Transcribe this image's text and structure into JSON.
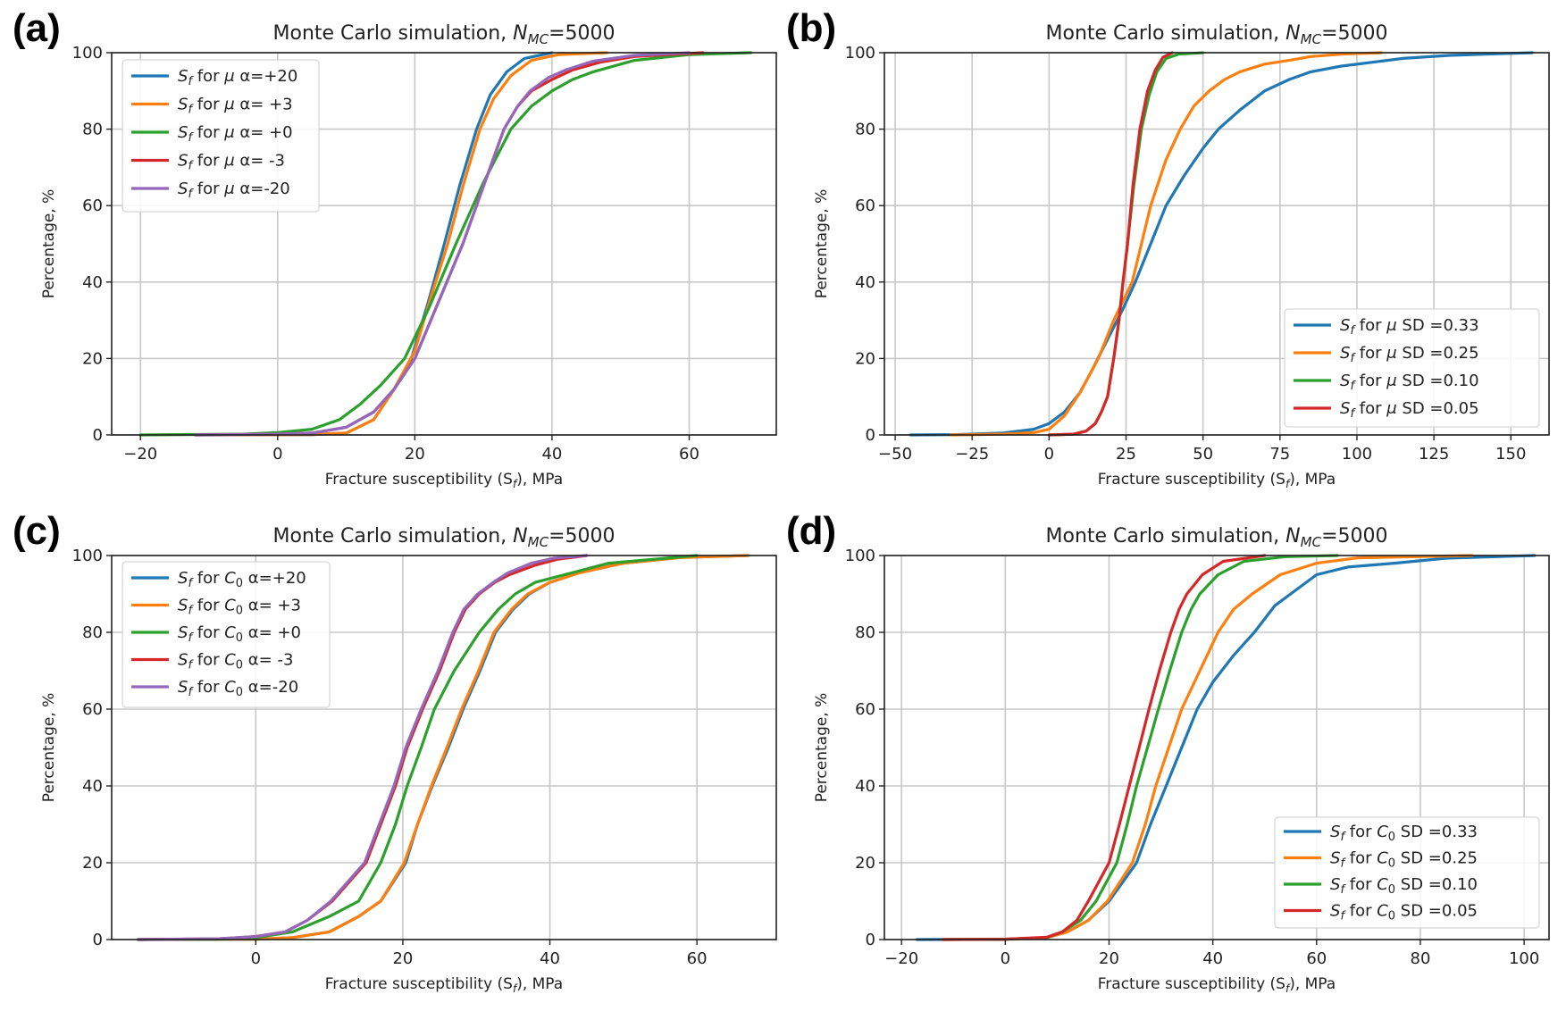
{
  "figure": {
    "panels": [
      "(a)",
      "(b)",
      "(c)",
      "(d)"
    ]
  },
  "chart_data": [
    {
      "panel": "(a)",
      "type": "line",
      "title": "Monte Carlo simulation, N_MC=5000",
      "title_parts": {
        "prefix": "Monte Carlo simulation, ",
        "symbol": "N",
        "subscript": "MC",
        "suffix": "=5000"
      },
      "xlabel": "Fracture susceptibility (S_f), MPa",
      "ylabel": "Percentage, %",
      "xlim": [
        -24.2,
        72.7
      ],
      "ylim": [
        0,
        100
      ],
      "xticks": [
        -20,
        0,
        20,
        40,
        60
      ],
      "xtick_labels": [
        "−20",
        "0",
        "20",
        "40",
        "60"
      ],
      "yticks": [
        0,
        20,
        40,
        60,
        80,
        100
      ],
      "ytick_labels": [
        "0",
        "20",
        "40",
        "60",
        "80",
        "100"
      ],
      "grid": true,
      "legend_position": "upper-left",
      "series": [
        {
          "name": "S_f for μ α=+20",
          "legend": {
            "param": "μ",
            "value": "α=+20"
          },
          "color": "#1f77b4",
          "x": [
            -12,
            5,
            10,
            14,
            17,
            19.5,
            22,
            24.3,
            26.5,
            29,
            31,
            33.4,
            36,
            40
          ],
          "y": [
            0,
            0.1,
            0.5,
            4,
            12,
            20,
            35,
            50,
            65,
            80,
            89,
            95,
            98.5,
            100
          ]
        },
        {
          "name": "S_f for μ α= +3",
          "legend": {
            "param": "μ",
            "value": "α= +3"
          },
          "color": "#ff7f0e",
          "x": [
            -12,
            5,
            10,
            14,
            17,
            20,
            22.5,
            24.8,
            27,
            29.5,
            31.5,
            34,
            37,
            41,
            48
          ],
          "y": [
            0,
            0.1,
            0.5,
            4,
            12,
            22,
            37,
            50,
            65,
            80,
            88,
            94,
            98,
            99.5,
            100
          ]
        },
        {
          "name": "S_f for μ α= +0",
          "legend": {
            "param": "μ",
            "value": "α= +0"
          },
          "color": "#2ca02c",
          "x": [
            -20,
            -5,
            0,
            5,
            9,
            12,
            15,
            18.5,
            22,
            26,
            30,
            34,
            37,
            40,
            43,
            46,
            52,
            60,
            69
          ],
          "y": [
            0,
            0.2,
            0.6,
            1.5,
            4,
            8,
            13,
            20,
            33,
            50,
            66,
            80,
            86,
            90,
            93,
            95,
            98,
            99.5,
            100
          ]
        },
        {
          "name": "S_f for μ α= -3",
          "legend": {
            "param": "μ",
            "value": "α= -3"
          },
          "color": "#d62728",
          "x": [
            -12,
            0,
            5,
            10,
            14,
            17,
            20,
            23.5,
            27,
            30,
            33,
            35,
            37,
            40,
            43,
            47,
            52,
            62
          ],
          "y": [
            0,
            0.2,
            0.5,
            2,
            6,
            12,
            20,
            35,
            50,
            65,
            80,
            86,
            90,
            93,
            95.5,
            97.5,
            99,
            100
          ]
        },
        {
          "name": "S_f for μ α=-20",
          "legend": {
            "param": "μ",
            "value": "α=-20"
          },
          "color": "#9467bd",
          "x": [
            -12,
            0,
            5,
            10,
            14,
            17,
            20,
            23.5,
            27,
            30,
            33,
            35,
            36.8,
            39.5,
            42,
            46,
            52,
            60
          ],
          "y": [
            0,
            0.2,
            0.5,
            2,
            6,
            12,
            20,
            35,
            50,
            65,
            80,
            86,
            90,
            93.5,
            95.5,
            97.8,
            99.3,
            100
          ]
        }
      ]
    },
    {
      "panel": "(b)",
      "type": "line",
      "title": "Monte Carlo simulation, N_MC=5000",
      "title_parts": {
        "prefix": "Monte Carlo simulation, ",
        "symbol": "N",
        "subscript": "MC",
        "suffix": "=5000"
      },
      "xlabel": "Fracture susceptibility (S_f), MPa",
      "ylabel": "Percentage, %",
      "xlim": [
        -53.5,
        162.4
      ],
      "ylim": [
        0,
        100
      ],
      "xticks": [
        -50,
        -25,
        0,
        25,
        50,
        75,
        100,
        125,
        150
      ],
      "xtick_labels": [
        "−50",
        "−25",
        "0",
        "25",
        "50",
        "75",
        "100",
        "125",
        "150"
      ],
      "yticks": [
        0,
        20,
        40,
        60,
        80,
        100
      ],
      "ytick_labels": [
        "0",
        "20",
        "40",
        "60",
        "80",
        "100"
      ],
      "grid": true,
      "legend_position": "lower-right",
      "series": [
        {
          "name": "S_f for μ SD =0.33",
          "legend": {
            "param": "μ",
            "value": "SD =0.33"
          },
          "color": "#1f77b4",
          "x": [
            -45,
            -30,
            -15,
            -5,
            0,
            5,
            10,
            14,
            19,
            24,
            28,
            33,
            38,
            44,
            50,
            55,
            62,
            70,
            78,
            85,
            95,
            105,
            115,
            130,
            157
          ],
          "y": [
            0,
            0.1,
            0.5,
            1.5,
            3,
            6,
            11,
            17,
            25,
            33,
            40,
            50,
            60,
            68,
            75,
            80,
            85,
            90,
            93,
            95,
            96.5,
            97.5,
            98.5,
            99.3,
            100
          ]
        },
        {
          "name": "S_f for μ SD =0.25",
          "legend": {
            "param": "μ",
            "value": "SD =0.25"
          },
          "color": "#ff7f0e",
          "x": [
            -32,
            -15,
            -5,
            0,
            5,
            10,
            16,
            21,
            27,
            33,
            38,
            42.6,
            47,
            52,
            57,
            62,
            70,
            78,
            85,
            95,
            108
          ],
          "y": [
            0,
            0.2,
            0.6,
            1.5,
            5,
            11,
            20,
            30,
            40,
            60,
            72,
            80,
            86,
            90,
            93,
            95,
            97,
            98,
            99,
            99.6,
            100
          ]
        },
        {
          "name": "S_f for μ SD =0.10",
          "legend": {
            "param": "μ",
            "value": "SD =0.10"
          },
          "color": "#2ca02c",
          "x": [
            0,
            8,
            12,
            15,
            17,
            19,
            21,
            22.7,
            24,
            25.5,
            27.5,
            30,
            32.5,
            35,
            38,
            42,
            50
          ],
          "y": [
            0,
            0.2,
            1,
            3,
            6,
            10,
            20,
            30,
            40,
            50,
            65,
            80,
            89,
            95,
            98.5,
            99.6,
            100
          ]
        },
        {
          "name": "S_f for μ SD =0.05",
          "legend": {
            "param": "μ",
            "value": "SD =0.05"
          },
          "color": "#d62728",
          "x": [
            0,
            8,
            12,
            15,
            17,
            19,
            21,
            22.7,
            24,
            25.5,
            27.2,
            29.5,
            32,
            34.5,
            37,
            40
          ],
          "y": [
            0,
            0.2,
            1,
            3,
            6,
            10,
            20,
            30,
            40,
            50,
            65,
            80,
            90,
            95.5,
            98.8,
            100
          ]
        }
      ]
    },
    {
      "panel": "(c)",
      "type": "line",
      "title": "Monte Carlo simulation, N_MC=5000",
      "title_parts": {
        "prefix": "Monte Carlo simulation, ",
        "symbol": "N",
        "subscript": "MC",
        "suffix": "=5000"
      },
      "xlabel": "Fracture susceptibility (S_f), MPa",
      "ylabel": "Percentage, %",
      "xlim": [
        -19.6,
        70.8
      ],
      "ylim": [
        0,
        100
      ],
      "xticks": [
        0,
        20,
        40,
        60
      ],
      "xtick_labels": [
        "0",
        "20",
        "40",
        "60"
      ],
      "yticks": [
        0,
        20,
        40,
        60,
        80,
        100
      ],
      "ytick_labels": [
        "0",
        "20",
        "40",
        "60",
        "80",
        "100"
      ],
      "grid": true,
      "legend_position": "upper-left",
      "series": [
        {
          "name": "S_f for C0 α=+20",
          "legend": {
            "param": "C",
            "param_sub": "0",
            "value": "α=+20"
          },
          "color": "#1f77b4",
          "x": [
            -16,
            0,
            5,
            10,
            14,
            17,
            20.4,
            22,
            24,
            26.2,
            28.2,
            30.5,
            32.6,
            35,
            37.2,
            40,
            44,
            50,
            58,
            67
          ],
          "y": [
            0,
            0.1,
            0.5,
            2,
            6,
            10,
            20,
            30,
            40,
            50,
            60,
            70,
            80,
            86,
            90,
            93,
            95.5,
            98,
            99.5,
            100
          ]
        },
        {
          "name": "S_f for C0 α= +3",
          "legend": {
            "param": "C",
            "param_sub": "0",
            "value": "α= +3"
          },
          "color": "#ff7f0e",
          "x": [
            -16,
            0,
            5,
            10,
            14,
            17,
            20.2,
            22,
            23.9,
            26,
            28,
            30.3,
            32.4,
            34.8,
            37,
            40,
            44,
            50,
            58,
            67
          ],
          "y": [
            0,
            0.1,
            0.5,
            2,
            6,
            10,
            20,
            30,
            40,
            50,
            60,
            70,
            80,
            86,
            90,
            93,
            95.5,
            98,
            99.5,
            100
          ]
        },
        {
          "name": "S_f for C0 α= +0",
          "legend": {
            "param": "C",
            "param_sub": "0",
            "value": "α= +0"
          },
          "color": "#2ca02c",
          "x": [
            -16,
            -5,
            0,
            5,
            10,
            14,
            17,
            19,
            20.6,
            22.5,
            24.3,
            27,
            30.4,
            33,
            35.3,
            38,
            42,
            48,
            60
          ],
          "y": [
            0,
            0.1,
            0.5,
            2,
            6,
            10,
            20,
            30,
            40,
            50,
            60,
            70,
            80,
            86,
            90,
            93,
            95,
            98,
            100
          ]
        },
        {
          "name": "S_f for C0 α= -3",
          "legend": {
            "param": "C",
            "param_sub": "0",
            "value": "α= -3"
          },
          "color": "#d62728",
          "x": [
            -16,
            -5,
            0,
            4,
            7,
            10.4,
            15,
            17,
            19,
            20.6,
            22.7,
            25,
            27,
            28.5,
            30.4,
            32.5,
            34.5,
            38,
            41,
            45
          ],
          "y": [
            0,
            0.2,
            0.8,
            2,
            5,
            10,
            20,
            30,
            40,
            50,
            60,
            70,
            80,
            86,
            90,
            93,
            95,
            97.5,
            99,
            100
          ]
        },
        {
          "name": "S_f for C0 α=-20",
          "legend": {
            "param": "C",
            "param_sub": "0",
            "value": "α=-20"
          },
          "color": "#9467bd",
          "x": [
            -16,
            -5,
            0,
            4,
            7,
            10.2,
            14.8,
            16.8,
            18.8,
            20.4,
            22.5,
            24.8,
            26.8,
            28.3,
            30.2,
            32.3,
            34.3,
            37.5,
            40.5,
            45
          ],
          "y": [
            0,
            0.2,
            0.8,
            2,
            5,
            10,
            20,
            30,
            40,
            50,
            60,
            70,
            80,
            86,
            90,
            93,
            95.5,
            98,
            99.3,
            100
          ]
        }
      ]
    },
    {
      "panel": "(d)",
      "type": "line",
      "title": "Monte Carlo simulation, N_MC=5000",
      "title_parts": {
        "prefix": "Monte Carlo simulation, ",
        "symbol": "N",
        "subscript": "MC",
        "suffix": "=5000"
      },
      "xlabel": "Fracture susceptibility (S_f), MPa",
      "ylabel": "Percentage, %",
      "xlim": [
        -23.3,
        104.8
      ],
      "ylim": [
        0,
        100
      ],
      "xticks": [
        -20,
        0,
        20,
        40,
        60,
        80,
        100
      ],
      "xtick_labels": [
        "−20",
        "0",
        "20",
        "40",
        "60",
        "80",
        "100"
      ],
      "yticks": [
        0,
        20,
        40,
        60,
        80,
        100
      ],
      "ytick_labels": [
        "0",
        "20",
        "40",
        "60",
        "80",
        "100"
      ],
      "grid": true,
      "legend_position": "lower-right",
      "series": [
        {
          "name": "S_f for C0 SD =0.33",
          "legend": {
            "param": "C",
            "param_sub": "0",
            "value": "SD =0.33"
          },
          "color": "#1f77b4",
          "x": [
            -17,
            0,
            8,
            12,
            16,
            20,
            25.3,
            28,
            31,
            34,
            37,
            40,
            44,
            48,
            52,
            55,
            60,
            66,
            75,
            85,
            102
          ],
          "y": [
            0,
            0.1,
            0.5,
            2,
            5,
            10,
            20,
            30,
            40,
            50,
            60,
            67,
            74,
            80,
            87,
            90,
            95,
            97,
            98,
            99.3,
            100
          ]
        },
        {
          "name": "S_f for C0 SD =0.25",
          "legend": {
            "param": "C",
            "param_sub": "0",
            "value": "SD =0.25"
          },
          "color": "#ff7f0e",
          "x": [
            -12,
            0,
            8,
            12,
            16,
            19.7,
            24.5,
            27,
            29,
            31.5,
            34,
            37.5,
            41,
            44,
            47.6,
            53,
            60,
            68,
            90
          ],
          "y": [
            0,
            0.1,
            0.5,
            2,
            5,
            10,
            20,
            30,
            40,
            50,
            60,
            70,
            80,
            86,
            90,
            95,
            98,
            99.4,
            100
          ]
        },
        {
          "name": "S_f for C0 SD =0.10",
          "legend": {
            "param": "C",
            "param_sub": "0",
            "value": "SD =0.10"
          },
          "color": "#2ca02c",
          "x": [
            -12,
            0,
            8,
            11,
            14.5,
            17.5,
            21.5,
            23.5,
            25.3,
            27.4,
            29.5,
            31.7,
            34,
            35.8,
            37.5,
            41,
            46,
            54,
            64
          ],
          "y": [
            0,
            0.1,
            0.5,
            2,
            5,
            10,
            20,
            30,
            40,
            50,
            60,
            70,
            80,
            86,
            90,
            95,
            98.5,
            99.7,
            100
          ]
        },
        {
          "name": "S_f for C0 SD =0.05",
          "legend": {
            "param": "C",
            "param_sub": "0",
            "value": "SD =0.05"
          },
          "color": "#d62728",
          "x": [
            -12,
            0,
            8,
            11,
            13.8,
            16,
            20,
            22,
            23.9,
            25.8,
            27.7,
            29.7,
            31.9,
            33.5,
            35,
            38,
            42,
            50
          ],
          "y": [
            0,
            0.1,
            0.6,
            2,
            5,
            10,
            20,
            30,
            40,
            50,
            60,
            70,
            80,
            86,
            90,
            95,
            98.5,
            100
          ]
        }
      ]
    }
  ]
}
